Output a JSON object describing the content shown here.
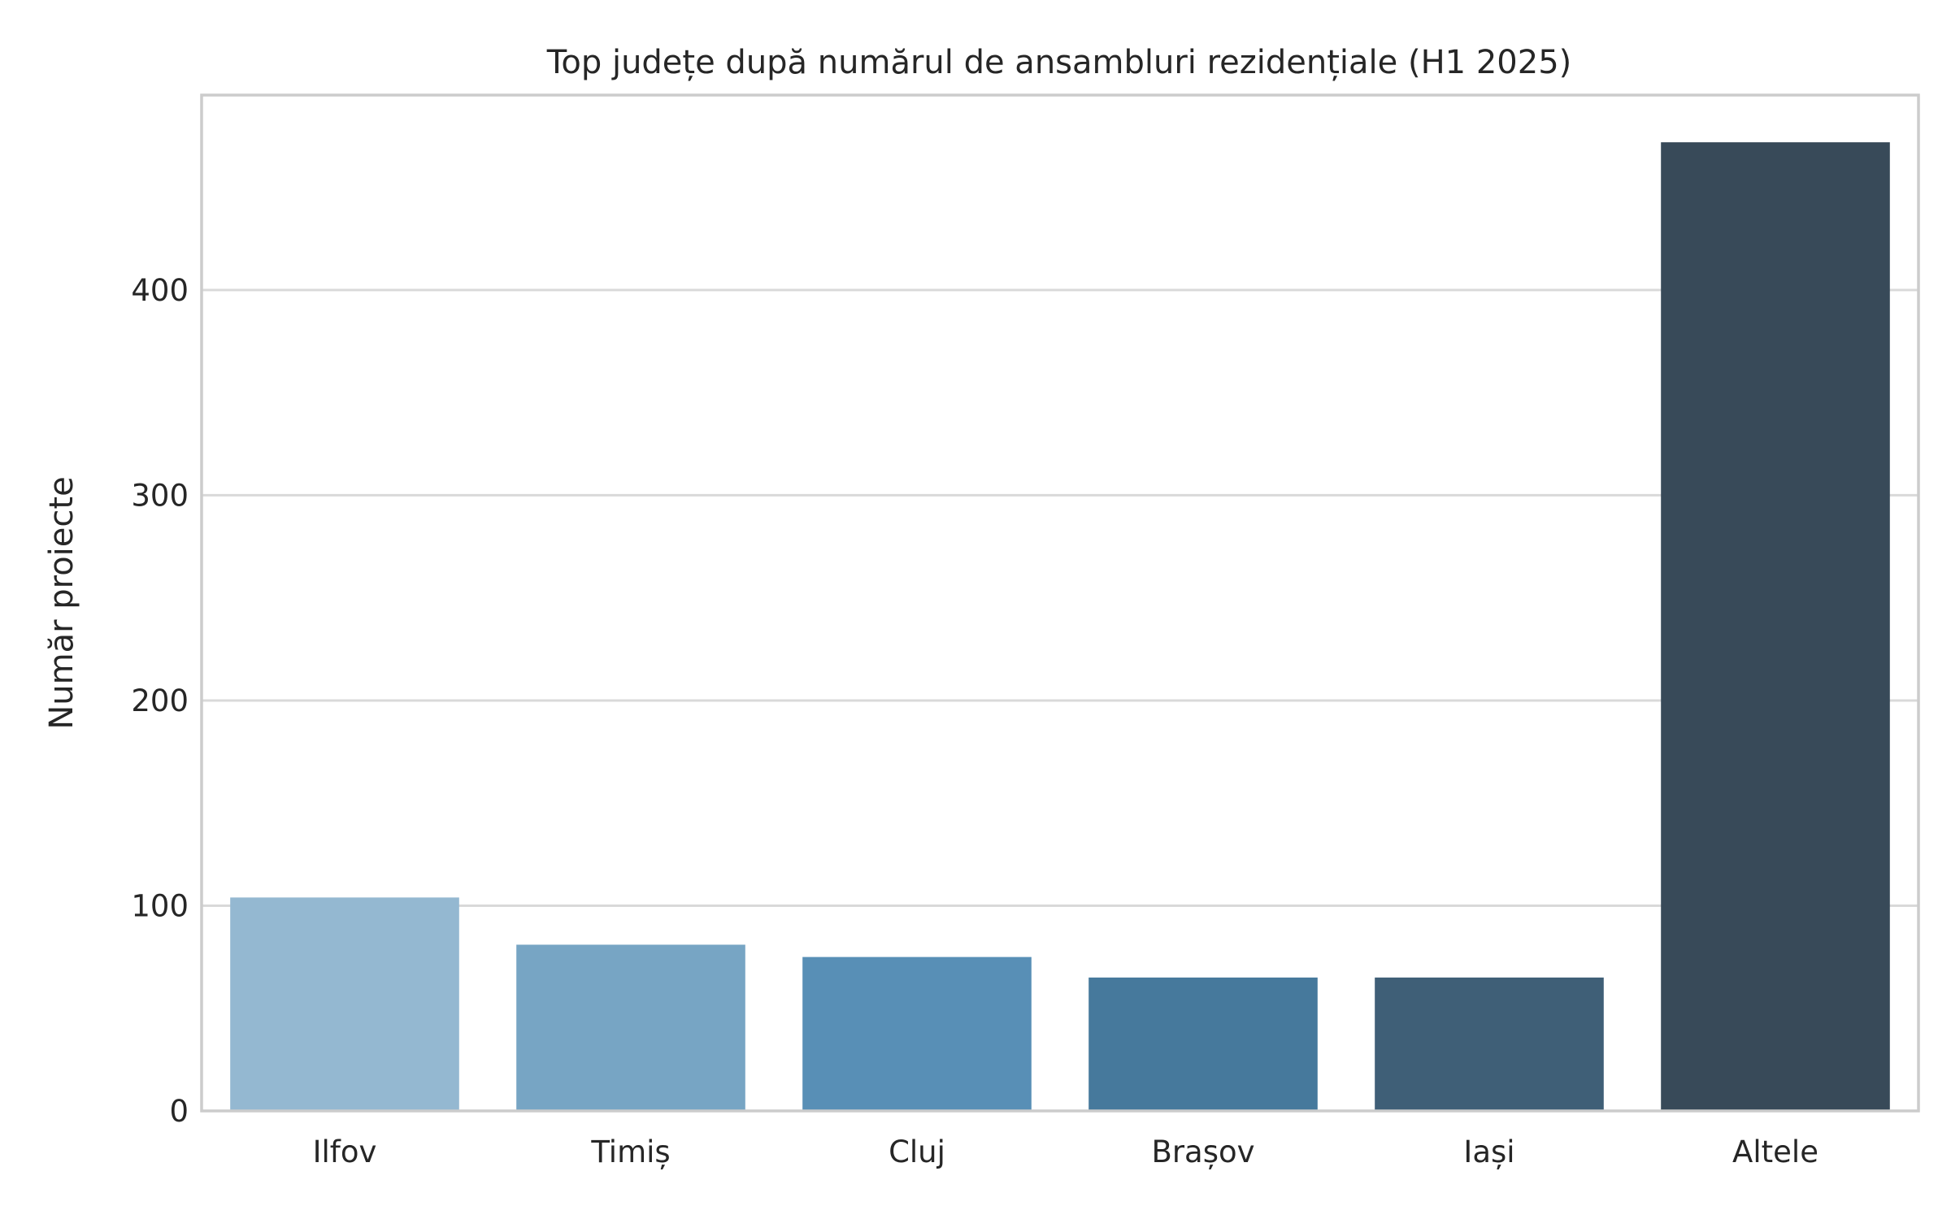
{
  "chart_data": {
    "type": "bar",
    "title": "Top județe după numărul de ansambluri rezidențiale (H1 2025)",
    "xlabel": "",
    "ylabel": "Număr proiecte",
    "categories": [
      "Ilfov",
      "Timiș",
      "Cluj",
      "Brașov",
      "Iași",
      "Altele"
    ],
    "values": [
      104,
      81,
      75,
      65,
      65,
      472
    ],
    "colors": [
      "#94b8d1",
      "#77a5c4",
      "#588fb6",
      "#46799c",
      "#3f5f77",
      "#384a59"
    ],
    "ylim": [
      0,
      495
    ],
    "yticks": [
      0,
      100,
      200,
      300,
      400
    ],
    "grid": true,
    "legend": "none"
  }
}
